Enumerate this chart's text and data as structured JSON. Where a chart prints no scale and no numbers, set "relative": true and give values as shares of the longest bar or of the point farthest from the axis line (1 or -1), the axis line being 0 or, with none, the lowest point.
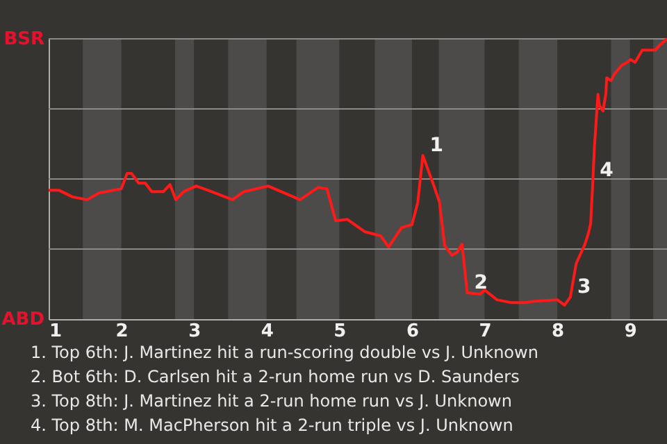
{
  "chart_data": {
    "type": "line",
    "relative": true,
    "x": [
      1.0,
      1.14,
      1.33,
      1.53,
      1.69,
      2.0,
      2.08,
      2.14,
      2.24,
      2.33,
      2.42,
      2.58,
      2.67,
      2.75,
      2.86,
      3.03,
      3.19,
      3.53,
      3.69,
      4.02,
      4.46,
      4.71,
      4.83,
      4.95,
      5.11,
      5.35,
      5.57,
      5.68,
      5.78,
      5.86,
      6.0,
      6.08,
      6.15,
      6.31,
      6.38,
      6.45,
      6.55,
      6.62,
      6.69,
      6.76,
      6.94,
      7.0,
      7.17,
      7.36,
      7.56,
      7.69,
      8.0,
      8.1,
      8.18,
      8.26,
      8.38,
      8.43,
      8.46,
      8.49,
      8.51,
      8.56,
      8.58,
      8.63,
      8.67,
      8.68,
      8.74,
      8.79,
      8.89,
      8.96,
      9.01,
      9.07,
      9.17,
      9.35,
      9.4,
      9.51
    ],
    "series": [
      {
        "color": "#ff1a1a",
        "values": [
          0.46,
          0.46,
          0.436,
          0.426,
          0.45,
          0.465,
          0.52,
          0.52,
          0.485,
          0.485,
          0.455,
          0.455,
          0.48,
          0.426,
          0.455,
          0.475,
          0.46,
          0.426,
          0.455,
          0.475,
          0.426,
          0.47,
          0.465,
          0.351,
          0.356,
          0.312,
          0.297,
          0.257,
          0.297,
          0.327,
          0.337,
          0.416,
          0.584,
          0.47,
          0.416,
          0.262,
          0.228,
          0.238,
          0.267,
          0.094,
          0.089,
          0.104,
          0.069,
          0.059,
          0.059,
          0.064,
          0.069,
          0.05,
          0.079,
          0.198,
          0.267,
          0.307,
          0.342,
          0.495,
          0.609,
          0.802,
          0.762,
          0.743,
          0.807,
          0.861,
          0.851,
          0.876,
          0.906,
          0.916,
          0.926,
          0.916,
          0.96,
          0.96,
          0.975,
          1
        ]
      }
    ],
    "xlim": [
      1,
      9.51
    ],
    "xticks": [
      1,
      2,
      3,
      4,
      5,
      6,
      7,
      8,
      9
    ],
    "grid": "y",
    "marker": "none",
    "line_style": "solid",
    "bands": [
      {
        "axis": "x",
        "from": 1.47,
        "to": 2,
        "color": "#4d4b49"
      },
      {
        "axis": "x",
        "from": 2.74,
        "to": 3,
        "color": "#4d4b49"
      },
      {
        "axis": "x",
        "from": 3.47,
        "to": 4,
        "color": "#4d4b49"
      },
      {
        "axis": "x",
        "from": 4.41,
        "to": 5,
        "color": "#4d4b49"
      },
      {
        "axis": "x",
        "from": 5.49,
        "to": 6,
        "color": "#4d4b49"
      },
      {
        "axis": "x",
        "from": 6.37,
        "to": 7,
        "color": "#4d4b49"
      },
      {
        "axis": "x",
        "from": 7.47,
        "to": 8,
        "color": "#4d4b49"
      },
      {
        "axis": "x",
        "from": 8.74,
        "to": 9,
        "color": "#4d4b49"
      },
      {
        "axis": "x",
        "from": 9.32,
        "to": 9.51,
        "color": "#4d4b49"
      }
    ],
    "annotations": [
      {
        "text": "1",
        "x": 6.15,
        "y": 0.584
      },
      {
        "text": "2",
        "x": 6.76,
        "y": 0.094
      },
      {
        "text": "3",
        "x": 8.18,
        "y": 0.079
      },
      {
        "text": "4",
        "x": 8.49,
        "y": 0.495
      },
      "BSR",
      "ABD",
      "1. Top 6th: J. Martinez hit a run-scoring double vs J. Unknown",
      "2. Bot 6th: D. Carlsen hit a 2-run home run vs D. Saunders",
      "3. Top 8th: J. Martinez hit a 2-run home run vs J. Unknown",
      "4. Top 8th: M. MacPherson hit a 2-run triple vs J. Unknown"
    ]
  }
}
